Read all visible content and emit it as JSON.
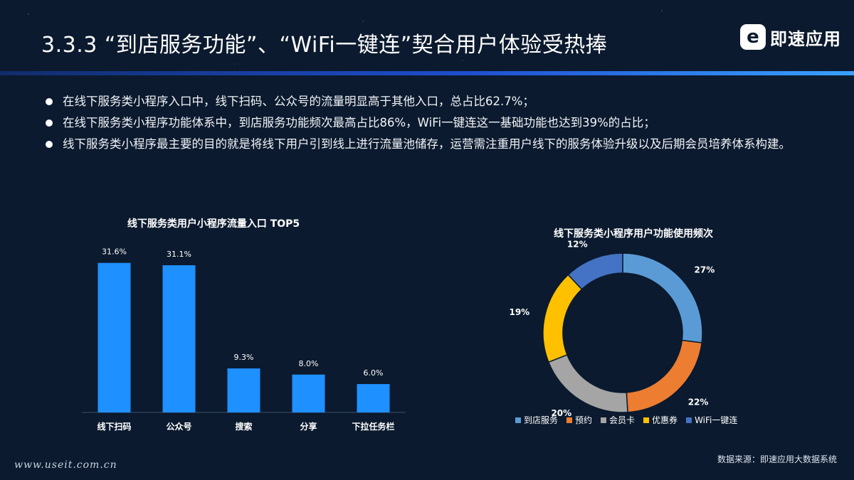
{
  "header": {
    "title": "3.3.3 “到店服务功能”、“WiFi一键连”契合用户体验受热捧",
    "brand_mark": "e",
    "brand_name": "即速应用"
  },
  "bullets": [
    "在线下服务类小程序入口中，线下扫码、公众号的流量明显高于其他入口，总占比62.7%；",
    "在线下服务类小程序功能体系中，到店服务功能频次最高占比86%，WiFi一键连这一基础功能也达到39%的占比；",
    "线下服务类小程序最主要的目的就是将线下用户引到线上进行流量池储存，运营需注重用户线下的服务体验升级以及后期会员培养体系构建。"
  ],
  "footer": {
    "source": "数据来源：即速应用大数据系统",
    "watermark": "www.useit.com.cn"
  },
  "colors": {
    "background": "#0b1a2e",
    "bar": "#1e90ff",
    "accent_line": "#1f4fd0"
  },
  "chart_data": [
    {
      "type": "bar",
      "title": "线下服务类用户小程序流量入口 TOP5",
      "categories": [
        "线下扫码",
        "公众号",
        "搜索",
        "分享",
        "下拉任务栏"
      ],
      "values": [
        31.6,
        31.1,
        9.3,
        8.0,
        6.0
      ],
      "value_labels": [
        "31.6%",
        "31.1%",
        "9.3%",
        "8.0%",
        "6.0%"
      ],
      "ylim": [
        0,
        35
      ],
      "grid": false,
      "color": "#1e90ff"
    },
    {
      "type": "pie",
      "subtype": "donut",
      "title": "线下服务类小程序用户功能使用频次",
      "categories": [
        "到店服务",
        "预约",
        "会员卡",
        "优惠券",
        "WiFi一键连"
      ],
      "values": [
        27,
        22,
        20,
        19,
        12
      ],
      "value_labels": [
        "27%",
        "22%",
        "20%",
        "19%",
        "12%"
      ],
      "colors": [
        "#5b9bd5",
        "#ed7d31",
        "#a5a5a5",
        "#ffc000",
        "#4472c4"
      ],
      "legend": "bottom"
    }
  ]
}
